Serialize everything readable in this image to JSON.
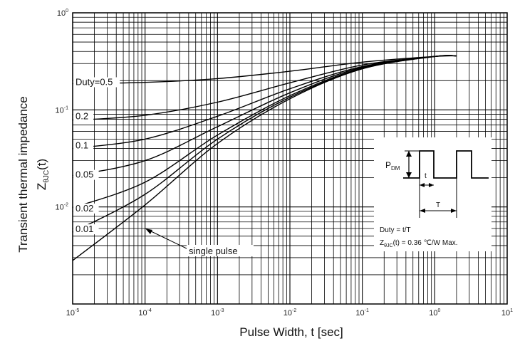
{
  "chart_data": {
    "type": "line",
    "title": "",
    "xlabel": "Pulse Width, t [sec]",
    "ylabel_main": "Transient thermal impedance",
    "ylabel_symbol": "Z",
    "ylabel_symbol_sub": "θJC",
    "ylabel_symbol_suffix": "(t)",
    "x_scale": "log",
    "y_scale": "log",
    "xlim": [
      1e-05,
      10
    ],
    "ylim": [
      0.001,
      1
    ],
    "grid": true,
    "x_ticks": [
      {
        "base": "10",
        "exp": "-5"
      },
      {
        "base": "10",
        "exp": "-4"
      },
      {
        "base": "10",
        "exp": "-3"
      },
      {
        "base": "10",
        "exp": "-2"
      },
      {
        "base": "10",
        "exp": "-1"
      },
      {
        "base": "10",
        "exp": "0"
      },
      {
        "base": "10",
        "exp": "1"
      }
    ],
    "y_ticks": [
      {
        "base": "10",
        "exp": "0"
      },
      {
        "base": "10",
        "exp": "-1"
      },
      {
        "base": "10",
        "exp": "-2"
      }
    ],
    "series": [
      {
        "name": "Duty=0.5",
        "label_value": 0.18,
        "x": [
          1e-05,
          0.0001,
          0.001,
          0.01,
          0.1,
          1,
          2
        ],
        "y": [
          0.186,
          0.192,
          0.21,
          0.25,
          0.31,
          0.355,
          0.36
        ]
      },
      {
        "name": "0.2",
        "label_value": 0.08,
        "x": [
          1e-05,
          0.0001,
          0.001,
          0.01,
          0.1,
          1,
          2
        ],
        "y": [
          0.078,
          0.088,
          0.12,
          0.19,
          0.29,
          0.355,
          0.36
        ]
      },
      {
        "name": "0.1",
        "label_value": 0.04,
        "x": [
          1e-05,
          0.0001,
          0.001,
          0.01,
          0.1,
          1,
          2
        ],
        "y": [
          0.04,
          0.05,
          0.086,
          0.165,
          0.28,
          0.355,
          0.36
        ]
      },
      {
        "name": "0.05",
        "label_value": 0.02,
        "x": [
          1e-05,
          0.0001,
          0.001,
          0.01,
          0.1,
          1,
          2
        ],
        "y": [
          0.021,
          0.03,
          0.067,
          0.15,
          0.275,
          0.355,
          0.36
        ]
      },
      {
        "name": "0.02",
        "label_value": 0.009,
        "x": [
          1e-05,
          0.0001,
          0.001,
          0.01,
          0.1,
          1,
          2
        ],
        "y": [
          0.0098,
          0.018,
          0.055,
          0.14,
          0.27,
          0.355,
          0.36
        ]
      },
      {
        "name": "0.01",
        "label_value": 0.0055,
        "x": [
          1e-05,
          0.0001,
          0.001,
          0.01,
          0.1,
          1,
          2
        ],
        "y": [
          0.0055,
          0.0135,
          0.05,
          0.135,
          0.265,
          0.355,
          0.36
        ]
      },
      {
        "name": "single pulse",
        "label_value": 0.0043,
        "x": [
          1e-05,
          0.0001,
          0.001,
          0.01,
          0.1,
          1,
          2
        ],
        "y": [
          0.0028,
          0.0105,
          0.045,
          0.13,
          0.265,
          0.355,
          0.36
        ]
      }
    ],
    "annotations": {
      "single_pulse_label": "single pulse",
      "inset": {
        "pdm_main": "P",
        "pdm_sub": "DM",
        "t_label": "t",
        "T_label": "T",
        "duty_text": "Duty = t/T",
        "z_main": "Z",
        "z_sub": "θJC",
        "z_text": "(t) = 0.36 ℃/W Max."
      }
    }
  }
}
